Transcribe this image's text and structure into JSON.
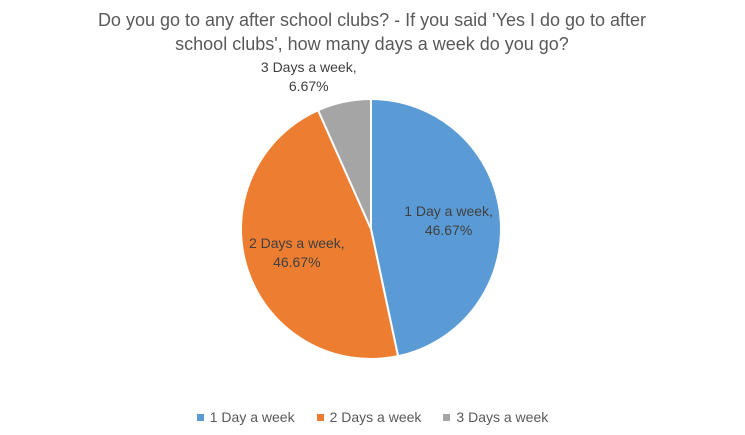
{
  "chart_data": {
    "type": "pie",
    "title": "Do you go to any after school clubs? - If you said 'Yes I do go to after school clubs', how many days a week do you go?",
    "categories": [
      "1 Day a week",
      "2 Days a week",
      "3 Days a week"
    ],
    "values": [
      46.67,
      46.67,
      6.67
    ],
    "value_labels": [
      "1 Day a week, 46.67%",
      "2 Days a week, 46.67%",
      "3 Days a week, 6.67%"
    ],
    "colors": [
      "#5b9bd5",
      "#ed7d31",
      "#a5a5a5"
    ],
    "legend": "bottom"
  }
}
